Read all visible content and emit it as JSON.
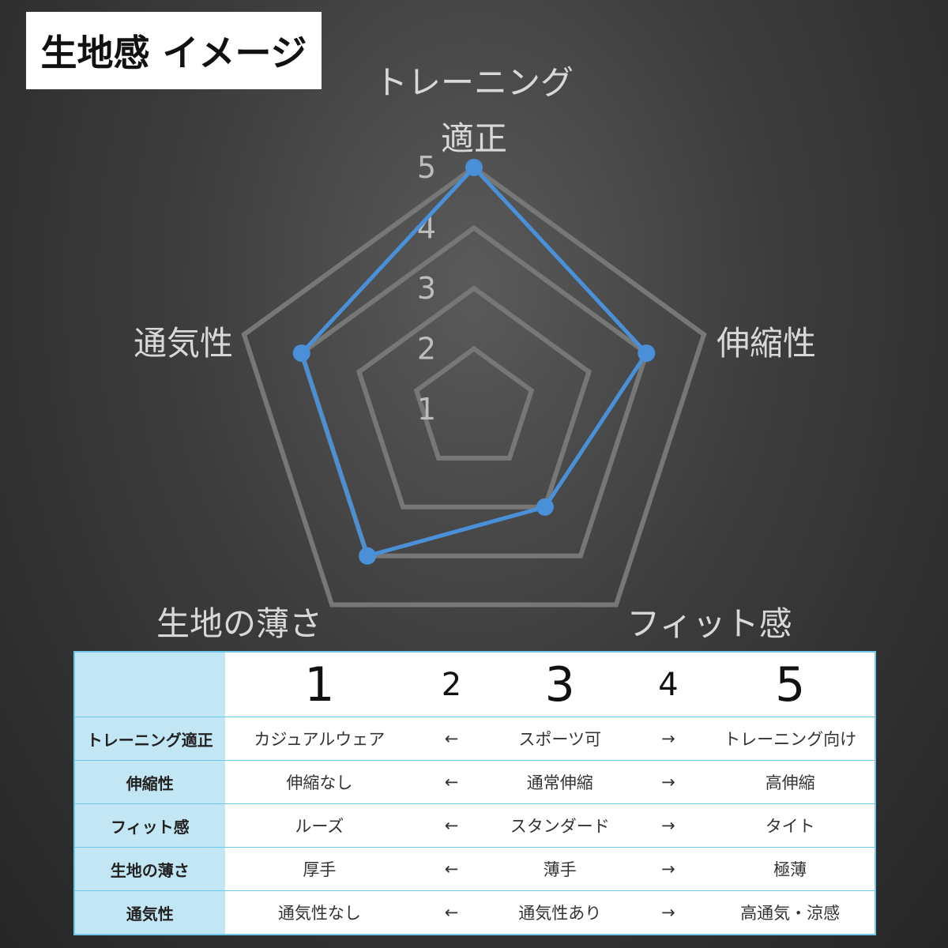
{
  "title": "生地感 イメージ",
  "chart_data": {
    "type": "radar",
    "axes": [
      "トレーニング適正",
      "伸縮性",
      "フィット感",
      "生地の薄さ",
      "通気性"
    ],
    "axis_labels_display": [
      [
        "トレーニング",
        "適正"
      ],
      [
        "伸縮性"
      ],
      [
        "フィット感"
      ],
      [
        "生地の薄さ"
      ],
      [
        "通気性"
      ]
    ],
    "values": [
      5,
      4,
      3,
      4,
      4
    ],
    "range": [
      1,
      5
    ],
    "ticks": [
      "1",
      "2",
      "3",
      "4",
      "5"
    ],
    "series_color": "#4a90d9",
    "grid_color": "#777777"
  },
  "table": {
    "scale": [
      "1",
      "2",
      "3",
      "4",
      "5"
    ],
    "rows": [
      {
        "label": "トレーニング適正",
        "c1": "カジュアルウェア",
        "c2": "←",
        "c3": "スポーツ可",
        "c4": "→",
        "c5": "トレーニング向け"
      },
      {
        "label": "伸縮性",
        "c1": "伸縮なし",
        "c2": "←",
        "c3": "通常伸縮",
        "c4": "→",
        "c5": "高伸縮"
      },
      {
        "label": "フィット感",
        "c1": "ルーズ",
        "c2": "←",
        "c3": "スタンダード",
        "c4": "→",
        "c5": "タイト"
      },
      {
        "label": "生地の薄さ",
        "c1": "厚手",
        "c2": "←",
        "c3": "薄手",
        "c4": "→",
        "c5": "極薄"
      },
      {
        "label": "通気性",
        "c1": "通気性なし",
        "c2": "←",
        "c3": "通気性あり",
        "c4": "→",
        "c5": "高通気・涼感"
      }
    ]
  }
}
